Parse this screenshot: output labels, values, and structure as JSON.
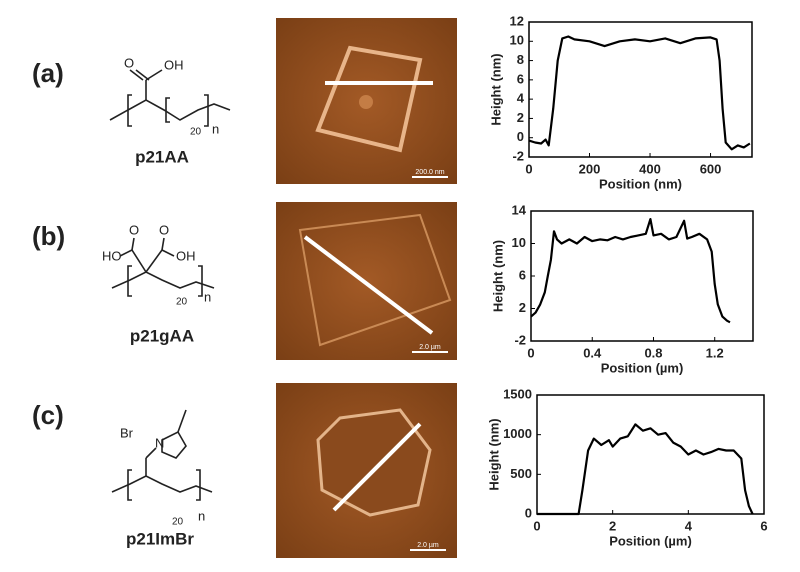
{
  "panels": [
    {
      "label": "(a)",
      "compound": "p21AA",
      "atoms": [
        "O",
        "OH",
        "20",
        "n"
      ],
      "scale_bar": "200.0 nm"
    },
    {
      "label": "(b)",
      "compound": "p21gAA",
      "atoms": [
        "HO",
        "O",
        "O",
        "OH",
        "20",
        "n"
      ],
      "scale_bar": "2.0 µm"
    },
    {
      "label": "(c)",
      "compound": "p21ImBr",
      "atoms": [
        "Br",
        "N",
        "20",
        "n"
      ],
      "scale_bar": "2.0 µm"
    }
  ],
  "chart_data": [
    {
      "type": "line",
      "xlabel": "Position (nm)",
      "ylabel": "Height (nm)",
      "x": [
        0,
        20,
        40,
        55,
        65,
        80,
        95,
        110,
        130,
        150,
        200,
        250,
        300,
        350,
        400,
        450,
        500,
        550,
        600,
        620,
        630,
        640,
        650,
        670,
        690,
        710,
        730
      ],
      "series": [
        {
          "color": "#000000",
          "values": [
            -0.3,
            -0.5,
            -0.6,
            -0.2,
            -0.8,
            3,
            8,
            10.3,
            10.5,
            10.2,
            10,
            9.5,
            10,
            10.2,
            10,
            10.3,
            9.8,
            10.3,
            10.4,
            10.2,
            8,
            3,
            -0.5,
            -1.2,
            -0.8,
            -1,
            -0.6
          ]
        }
      ],
      "xlim": [
        0,
        737
      ],
      "xticks": [
        0,
        200,
        400,
        600
      ],
      "ylim": [
        -2,
        12
      ],
      "yticks": [
        -2,
        0,
        2,
        4,
        6,
        8,
        10,
        12
      ]
    },
    {
      "type": "line",
      "xlabel": "Position (µm)",
      "ylabel": "Height (nm)",
      "x": [
        0,
        0.03,
        0.06,
        0.09,
        0.11,
        0.13,
        0.15,
        0.17,
        0.2,
        0.25,
        0.3,
        0.35,
        0.4,
        0.45,
        0.5,
        0.55,
        0.6,
        0.65,
        0.7,
        0.75,
        0.78,
        0.8,
        0.85,
        0.9,
        0.95,
        1.0,
        1.02,
        1.05,
        1.1,
        1.15,
        1.18,
        1.2,
        1.22,
        1.25,
        1.28,
        1.3
      ],
      "series": [
        {
          "color": "#000000",
          "values": [
            1,
            1.5,
            2.5,
            4,
            6,
            8,
            11.5,
            10.5,
            10,
            10.5,
            10,
            10.8,
            10.3,
            10.5,
            10.4,
            10.8,
            10.5,
            10.8,
            11,
            11.2,
            13,
            11,
            11.2,
            10.5,
            10.8,
            12.8,
            10.6,
            10.8,
            11.2,
            10.5,
            9,
            5,
            2.5,
            1,
            0.5,
            0.3
          ]
        }
      ],
      "xlim": [
        0,
        1.45
      ],
      "xticks": [
        0,
        0.4,
        0.8,
        1.2
      ],
      "ylim": [
        -2,
        14
      ],
      "yticks": [
        -2,
        2,
        6,
        10,
        14
      ]
    },
    {
      "type": "line",
      "xlabel": "Position (µm)",
      "ylabel": "Height (nm)",
      "x": [
        0,
        0.5,
        1.0,
        1.1,
        1.2,
        1.35,
        1.5,
        1.7,
        1.9,
        2.0,
        2.2,
        2.4,
        2.6,
        2.8,
        3.0,
        3.2,
        3.4,
        3.6,
        3.8,
        4.0,
        4.2,
        4.4,
        4.6,
        4.8,
        5.0,
        5.2,
        5.4,
        5.5,
        5.6,
        5.7
      ],
      "series": [
        {
          "color": "#000000",
          "values": [
            0,
            0,
            0,
            0,
            300,
            800,
            950,
            870,
            930,
            850,
            950,
            980,
            1130,
            1050,
            1080,
            1000,
            1020,
            900,
            850,
            750,
            800,
            750,
            780,
            820,
            800,
            800,
            700,
            300,
            100,
            0
          ]
        }
      ],
      "xlim": [
        0,
        6
      ],
      "xticks": [
        0,
        2,
        4,
        6
      ],
      "ylim": [
        0,
        1500
      ],
      "yticks": [
        0,
        500,
        1000,
        1500
      ]
    }
  ]
}
